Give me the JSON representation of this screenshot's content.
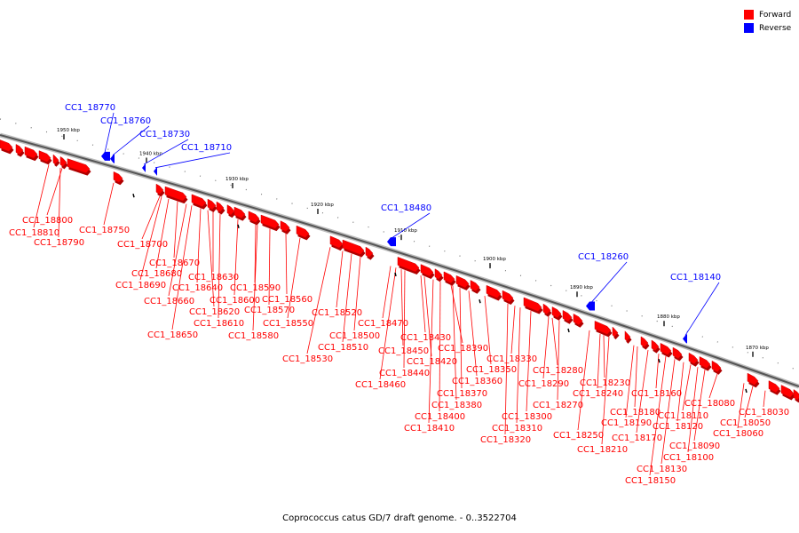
{
  "legend": {
    "forward": {
      "label": "Forward",
      "color": "#ff0000"
    },
    "reverse": {
      "label": "Reverse",
      "color": "#0000ff"
    }
  },
  "caption": "Coprococcus catus GD/7 draft genome. - 0..3522704",
  "axis": {
    "ticks": [
      "1950 kbp",
      "1940 kbp",
      "1930 kbp",
      "1920 kbp",
      "1910 kbp",
      "1900 kbp",
      "1890 kbp",
      "1880 kbp",
      "1870 kbp"
    ]
  },
  "reverse_genes": [
    "CC1_18770",
    "CC1_18760",
    "CC1_18730",
    "CC1_18710",
    "CC1_18480",
    "CC1_18260",
    "CC1_18140"
  ],
  "forward_genes": [
    "CC1_18800",
    "CC1_18810",
    "CC1_18790",
    "CC1_18750",
    "CC1_18700",
    "CC1_18670",
    "CC1_18680",
    "CC1_18690",
    "CC1_18630",
    "CC1_18640",
    "CC1_18660",
    "CC1_18620",
    "CC1_18610",
    "CC1_18650",
    "CC1_18600",
    "CC1_18590",
    "CC1_18570",
    "CC1_18580",
    "CC1_18560",
    "CC1_18550",
    "CC1_18520",
    "CC1_18530",
    "CC1_18510",
    "CC1_18500",
    "CC1_18470",
    "CC1_18460",
    "CC1_18440",
    "CC1_18450",
    "CC1_18420",
    "CC1_18430",
    "CC1_18390",
    "CC1_18360",
    "CC1_18370",
    "CC1_18350",
    "CC1_18380",
    "CC1_18400",
    "CC1_18410",
    "CC1_18330",
    "CC1_18320",
    "CC1_18310",
    "CC1_18300",
    "CC1_18280",
    "CC1_18290",
    "CC1_18270",
    "CC1_18230",
    "CC1_18240",
    "CC1_18250",
    "CC1_18210",
    "CC1_18180",
    "CC1_18190",
    "CC1_18160",
    "CC1_18170",
    "CC1_18110",
    "CC1_18120",
    "CC1_18130",
    "CC1_18150",
    "CC1_18080",
    "CC1_18090",
    "CC1_18100",
    "CC1_18030",
    "CC1_18050",
    "CC1_18060"
  ]
}
